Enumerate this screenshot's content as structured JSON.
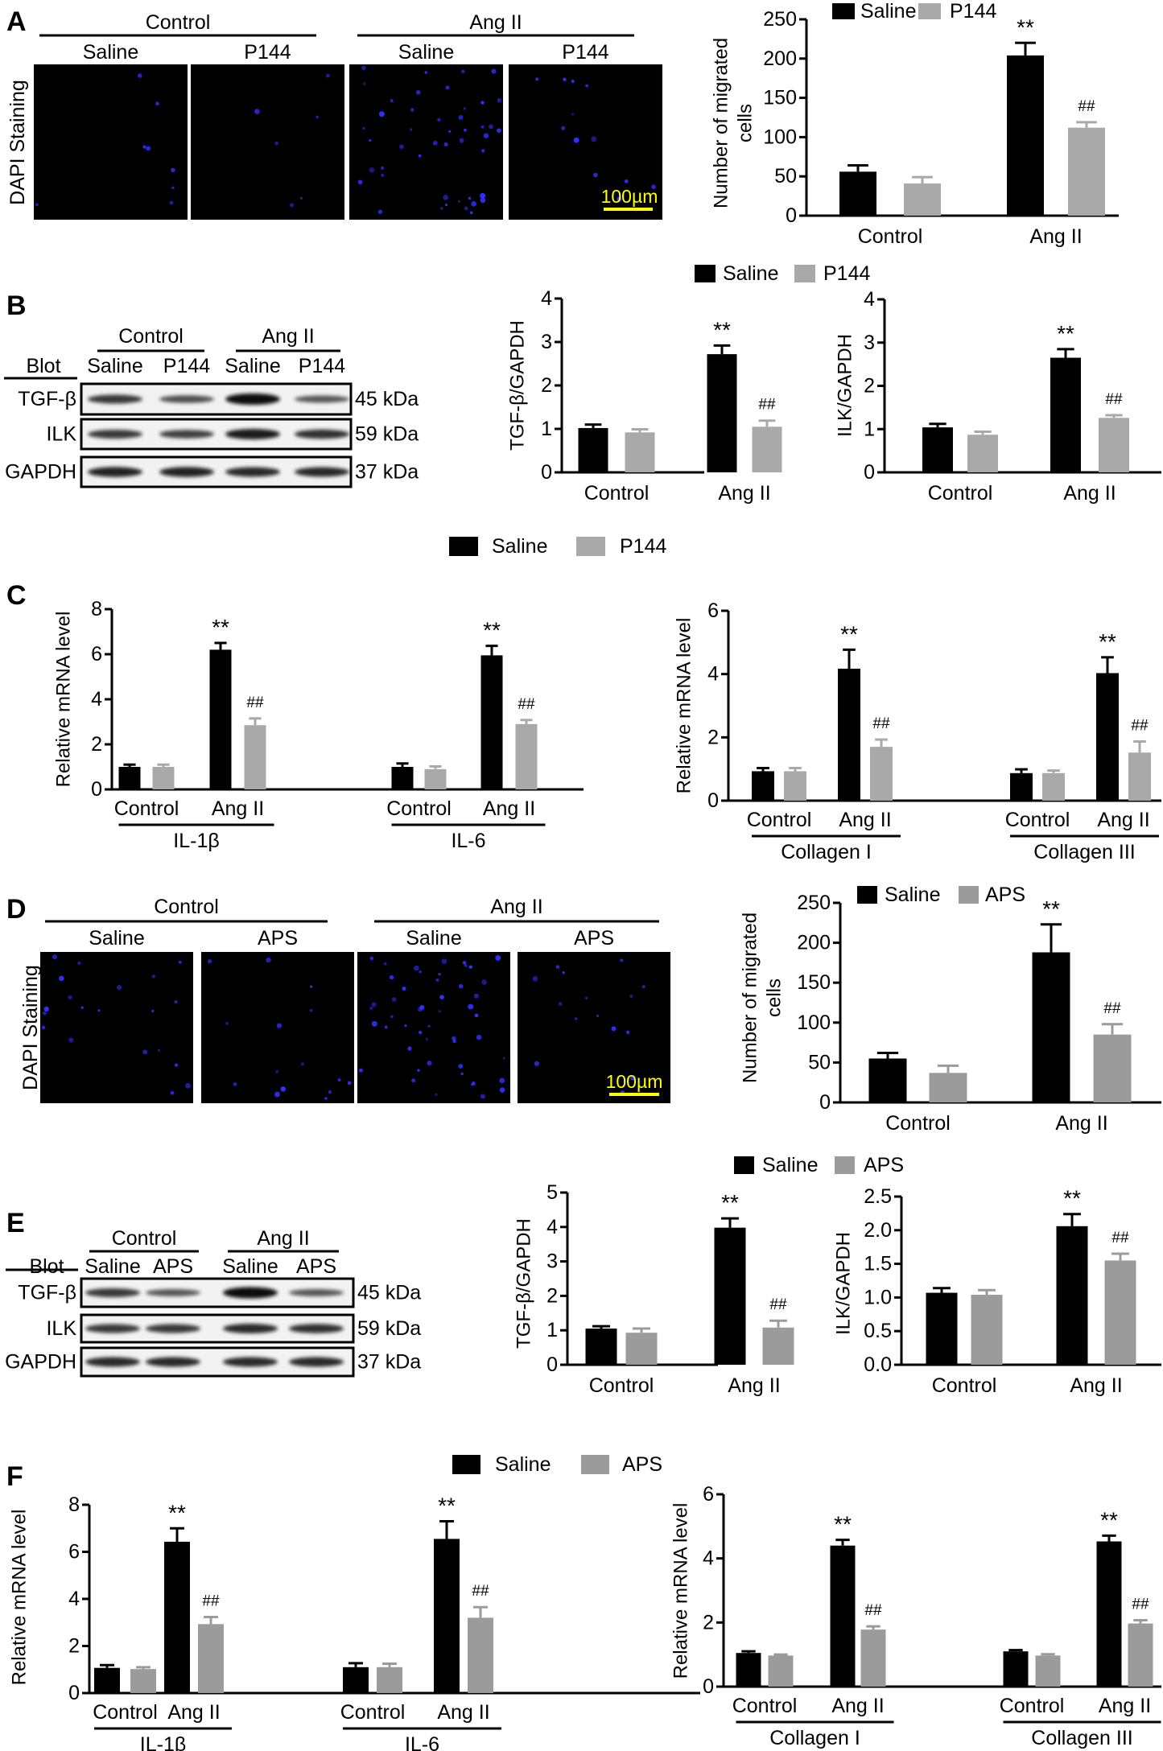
{
  "figure": {
    "panel_letters": [
      "A",
      "B",
      "C",
      "D",
      "E",
      "F"
    ],
    "colors": {
      "saline": "#000000",
      "p144": "#a9a9a9",
      "aps": "#9b9b9b",
      "dapi": "#3030ff",
      "scale_bar": "#ffff00",
      "micrograph_background": "#000000"
    },
    "micrographs": [
      {
        "panel": "A",
        "ylabel": "DAPI Staining",
        "group_labels": [
          "Control",
          "Ang II"
        ],
        "sub_labels": [
          "Saline",
          "P144",
          "Saline",
          "P144"
        ],
        "scale_bar": "100µm"
      },
      {
        "panel": "D",
        "ylabel": "DAPI Staining",
        "group_labels": [
          "Control",
          "Ang II"
        ],
        "sub_labels": [
          "Saline",
          "APS",
          "Saline",
          "APS"
        ],
        "scale_bar": "100µm"
      }
    ],
    "blots": [
      {
        "panel": "B",
        "blot_label": "Blot",
        "group_labels": [
          "Control",
          "Ang II"
        ],
        "sub_labels": [
          "Saline",
          "P144",
          "Saline",
          "P144"
        ],
        "rows": [
          {
            "protein": "TGF-β",
            "size": "45 kDa",
            "band_intensity": [
              0.7,
              0.55,
              1.0,
              0.5
            ]
          },
          {
            "protein": "ILK",
            "size": "59 kDa",
            "band_intensity": [
              0.7,
              0.65,
              0.9,
              0.75
            ]
          },
          {
            "protein": "GAPDH",
            "size": "37 kDa",
            "band_intensity": [
              0.85,
              0.85,
              0.8,
              0.8
            ]
          }
        ]
      },
      {
        "panel": "E",
        "blot_label": "Blot",
        "group_labels": [
          "Control",
          "Ang II"
        ],
        "sub_labels": [
          "Saline",
          "APS",
          "Saline",
          "APS"
        ],
        "rows": [
          {
            "protein": "TGF-β",
            "size": "45 kDa",
            "band_intensity": [
              0.7,
              0.5,
              1.0,
              0.5
            ]
          },
          {
            "protein": "ILK",
            "size": "59 kDa",
            "band_intensity": [
              0.7,
              0.7,
              0.8,
              0.75
            ]
          },
          {
            "protein": "GAPDH",
            "size": "37 kDa",
            "band_intensity": [
              0.8,
              0.8,
              0.8,
              0.8
            ]
          }
        ]
      }
    ]
  },
  "chart_data": [
    {
      "panel": "A",
      "type": "bar",
      "ylabel_lines": [
        "Number of migrated",
        "cells"
      ],
      "ylim": [
        0,
        250
      ],
      "yticks": [
        "0",
        "50",
        "100",
        "150",
        "200",
        "250"
      ],
      "categories": [
        "Control",
        "Ang II"
      ],
      "groups": [],
      "series": [
        {
          "name": "Saline",
          "values": [
            56,
            204
          ],
          "errors": [
            8,
            16
          ]
        },
        {
          "name": "P144",
          "values": [
            41,
            112
          ],
          "errors": [
            8,
            7
          ]
        }
      ],
      "annotations": [
        {
          "series": 0,
          "index": 1,
          "text": "**"
        },
        {
          "series": 1,
          "index": 1,
          "text": "##"
        }
      ]
    },
    {
      "panel": "B",
      "type": "bar",
      "ylabel_lines": [
        "TGF-β/GAPDH"
      ],
      "ylim": [
        0,
        4
      ],
      "yticks": [
        "0",
        "1",
        "2",
        "3",
        "4"
      ],
      "categories": [
        "Control",
        "Ang II"
      ],
      "groups": [],
      "series": [
        {
          "name": "Saline",
          "values": [
            1.02,
            2.72
          ],
          "errors": [
            0.08,
            0.2
          ]
        },
        {
          "name": "P144",
          "values": [
            0.92,
            1.05
          ],
          "errors": [
            0.07,
            0.14
          ]
        }
      ],
      "annotations": [
        {
          "series": 0,
          "index": 1,
          "text": "**"
        },
        {
          "series": 1,
          "index": 1,
          "text": "##"
        }
      ]
    },
    {
      "panel": "B",
      "type": "bar",
      "ylabel_lines": [
        "ILK/GAPDH"
      ],
      "ylim": [
        0,
        4
      ],
      "yticks": [
        "0",
        "1",
        "2",
        "3",
        "4"
      ],
      "categories": [
        "Control",
        "Ang II"
      ],
      "groups": [],
      "series": [
        {
          "name": "Saline",
          "values": [
            1.04,
            2.65
          ],
          "errors": [
            0.08,
            0.2
          ]
        },
        {
          "name": "P144",
          "values": [
            0.87,
            1.26
          ],
          "errors": [
            0.07,
            0.06
          ]
        }
      ],
      "annotations": [
        {
          "series": 0,
          "index": 1,
          "text": "**"
        },
        {
          "series": 1,
          "index": 1,
          "text": "##"
        }
      ]
    },
    {
      "panel": "C",
      "type": "bar",
      "ylabel_lines": [
        "Relative mRNA level"
      ],
      "ylim": [
        0,
        8
      ],
      "yticks": [
        "0",
        "2",
        "4",
        "6",
        "8"
      ],
      "categories": [
        "Control",
        "Ang II",
        "Control",
        "Ang II"
      ],
      "groups": [
        "IL-1β",
        "IL-6"
      ],
      "series": [
        {
          "name": "Saline",
          "values": [
            1.0,
            6.2,
            1.0,
            5.95
          ],
          "errors": [
            0.1,
            0.3,
            0.15,
            0.42
          ]
        },
        {
          "name": "P144",
          "values": [
            1.0,
            2.85,
            0.9,
            2.9
          ],
          "errors": [
            0.1,
            0.3,
            0.12,
            0.18
          ]
        }
      ],
      "annotations": [
        {
          "series": 0,
          "index": 1,
          "text": "**"
        },
        {
          "series": 1,
          "index": 1,
          "text": "##"
        },
        {
          "series": 0,
          "index": 3,
          "text": "**"
        },
        {
          "series": 1,
          "index": 3,
          "text": "##"
        }
      ]
    },
    {
      "panel": "C",
      "type": "bar",
      "ylabel_lines": [
        "Relative mRNA level"
      ],
      "ylim": [
        0,
        6
      ],
      "yticks": [
        "0",
        "2",
        "4",
        "6"
      ],
      "categories": [
        "Control",
        "Ang II",
        "Control",
        "Ang II"
      ],
      "groups": [
        "Collagen I",
        "Collagen III"
      ],
      "series": [
        {
          "name": "Saline",
          "values": [
            0.93,
            4.17,
            0.87,
            4.03
          ],
          "errors": [
            0.1,
            0.6,
            0.12,
            0.5
          ]
        },
        {
          "name": "P144",
          "values": [
            0.93,
            1.7,
            0.87,
            1.52
          ],
          "errors": [
            0.1,
            0.23,
            0.08,
            0.35
          ]
        }
      ],
      "annotations": [
        {
          "series": 0,
          "index": 1,
          "text": "**"
        },
        {
          "series": 1,
          "index": 1,
          "text": "##"
        },
        {
          "series": 0,
          "index": 3,
          "text": "**"
        },
        {
          "series": 1,
          "index": 3,
          "text": "##"
        }
      ]
    },
    {
      "panel": "D",
      "type": "bar",
      "ylabel_lines": [
        "Number of migrated",
        "cells"
      ],
      "ylim": [
        0,
        250
      ],
      "yticks": [
        "0",
        "50",
        "100",
        "150",
        "200",
        "250"
      ],
      "categories": [
        "Control",
        "Ang II"
      ],
      "groups": [],
      "series": [
        {
          "name": "Saline",
          "values": [
            55,
            188
          ],
          "errors": [
            7,
            35
          ]
        },
        {
          "name": "APS",
          "values": [
            37,
            85
          ],
          "errors": [
            9,
            13
          ]
        }
      ],
      "annotations": [
        {
          "series": 0,
          "index": 1,
          "text": "**"
        },
        {
          "series": 1,
          "index": 1,
          "text": "##"
        }
      ]
    },
    {
      "panel": "E",
      "type": "bar",
      "ylabel_lines": [
        "TGF-β/GAPDH"
      ],
      "ylim": [
        0,
        5
      ],
      "yticks": [
        "0",
        "1",
        "2",
        "3",
        "4",
        "5"
      ],
      "categories": [
        "Control",
        "Ang II"
      ],
      "groups": [],
      "series": [
        {
          "name": "Saline",
          "values": [
            1.05,
            3.98
          ],
          "errors": [
            0.07,
            0.27
          ]
        },
        {
          "name": "APS",
          "values": [
            0.93,
            1.08
          ],
          "errors": [
            0.12,
            0.2
          ]
        }
      ],
      "annotations": [
        {
          "series": 0,
          "index": 1,
          "text": "**"
        },
        {
          "series": 1,
          "index": 1,
          "text": "##"
        }
      ]
    },
    {
      "panel": "E",
      "type": "bar",
      "ylabel_lines": [
        "ILK/GAPDH"
      ],
      "ylim": [
        0,
        2.5
      ],
      "yticks": [
        "0.0",
        "0.5",
        "1.0",
        "1.5",
        "2.0",
        "2.5"
      ],
      "categories": [
        "Control",
        "Ang II"
      ],
      "groups": [],
      "series": [
        {
          "name": "Saline",
          "values": [
            1.07,
            2.06
          ],
          "errors": [
            0.07,
            0.18
          ]
        },
        {
          "name": "APS",
          "values": [
            1.04,
            1.55
          ],
          "errors": [
            0.07,
            0.1
          ]
        }
      ],
      "annotations": [
        {
          "series": 0,
          "index": 1,
          "text": "**"
        },
        {
          "series": 1,
          "index": 1,
          "text": "##"
        }
      ]
    },
    {
      "panel": "F",
      "type": "bar",
      "ylabel_lines": [
        "Relative mRNA level"
      ],
      "ylim": [
        0,
        8
      ],
      "yticks": [
        "0",
        "2",
        "4",
        "6",
        "8"
      ],
      "categories": [
        "Control",
        "Ang II",
        "Control",
        "Ang II"
      ],
      "groups": [
        "IL-1β",
        "IL-6"
      ],
      "series": [
        {
          "name": "Saline",
          "values": [
            1.07,
            6.43,
            1.1,
            6.55
          ],
          "errors": [
            0.12,
            0.57,
            0.17,
            0.75
          ]
        },
        {
          "name": "APS",
          "values": [
            1.02,
            2.93,
            1.1,
            3.2
          ],
          "errors": [
            0.08,
            0.3,
            0.15,
            0.45
          ]
        }
      ],
      "annotations": [
        {
          "series": 0,
          "index": 1,
          "text": "**"
        },
        {
          "series": 1,
          "index": 1,
          "text": "##"
        },
        {
          "series": 0,
          "index": 3,
          "text": "**"
        },
        {
          "series": 1,
          "index": 3,
          "text": "##"
        }
      ]
    },
    {
      "panel": "F",
      "type": "bar",
      "ylabel_lines": [
        "Relative mRNA level"
      ],
      "ylim": [
        0,
        6
      ],
      "yticks": [
        "0",
        "2",
        "4",
        "6"
      ],
      "categories": [
        "Control",
        "Ang II",
        "Control",
        "Ang II"
      ],
      "groups": [
        "Collagen I",
        "Collagen III"
      ],
      "series": [
        {
          "name": "Saline",
          "values": [
            1.05,
            4.4,
            1.1,
            4.53
          ],
          "errors": [
            0.05,
            0.18,
            0.04,
            0.18
          ]
        },
        {
          "name": "APS",
          "values": [
            0.97,
            1.78,
            0.97,
            1.97
          ],
          "errors": [
            0.03,
            0.1,
            0.04,
            0.1
          ]
        }
      ],
      "annotations": [
        {
          "series": 0,
          "index": 1,
          "text": "**"
        },
        {
          "series": 1,
          "index": 1,
          "text": "##"
        },
        {
          "series": 0,
          "index": 3,
          "text": "**"
        },
        {
          "series": 1,
          "index": 3,
          "text": "##"
        }
      ]
    }
  ]
}
